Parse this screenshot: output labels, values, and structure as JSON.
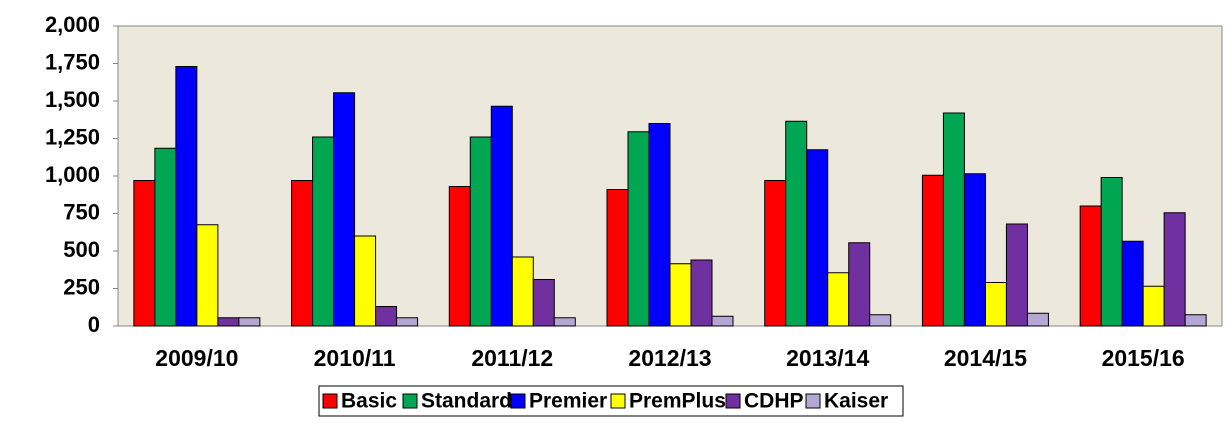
{
  "chart_data": {
    "type": "bar",
    "categories": [
      "2009/10",
      "2010/11",
      "2011/12",
      "2012/13",
      "2013/14",
      "2014/15",
      "2015/16"
    ],
    "series": [
      {
        "name": "Basic",
        "color": "#ff0000",
        "values": [
          970,
          970,
          930,
          910,
          970,
          1005,
          800
        ]
      },
      {
        "name": "Standard",
        "color": "#00a651",
        "values": [
          1185,
          1260,
          1260,
          1295,
          1365,
          1420,
          990
        ]
      },
      {
        "name": "Premier",
        "color": "#0000ff",
        "values": [
          1730,
          1555,
          1465,
          1350,
          1175,
          1015,
          565
        ]
      },
      {
        "name": "PremPlus",
        "color": "#ffff00",
        "values": [
          675,
          600,
          460,
          415,
          355,
          290,
          265
        ]
      },
      {
        "name": "CDHP",
        "color": "#7030a0",
        "values": [
          55,
          130,
          310,
          440,
          555,
          680,
          755
        ]
      },
      {
        "name": "Kaiser",
        "color": "#b4a7d6",
        "values": [
          55,
          55,
          55,
          65,
          75,
          85,
          75
        ]
      }
    ],
    "ylim": [
      0,
      2000
    ],
    "yticks": [
      0,
      250,
      500,
      750,
      {
        "value": 1000,
        "label": "1,000"
      },
      {
        "value": 1250,
        "label": "1,250"
      },
      {
        "value": 1500,
        "label": "1,500"
      },
      {
        "value": 1750,
        "label": "1,750"
      },
      {
        "value": 2000,
        "label": "2,000"
      }
    ],
    "grid": false,
    "legend": "bottom"
  }
}
